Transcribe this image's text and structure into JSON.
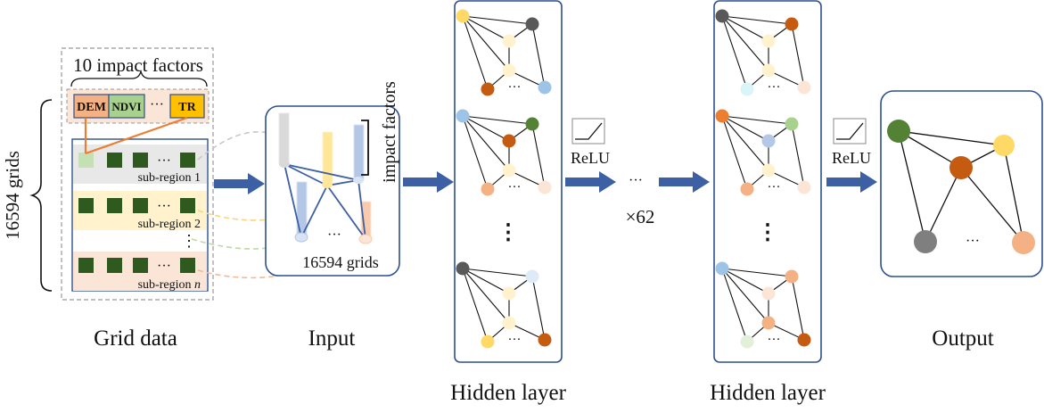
{
  "grid": {
    "section_label": "Grid data",
    "side_label": "16594 grids",
    "factors_label": "10 impact factors",
    "factor_chips": [
      "DEM",
      "NDVI",
      "TR"
    ],
    "chip_colors": [
      "#f4b183",
      "#a9d18e",
      "#ffc000"
    ],
    "ellipsis": "···",
    "regions": [
      {
        "label": "sub-region 1",
        "bg": "#e8e8e8"
      },
      {
        "label": "sub-region 2",
        "bg": "#fff2cc"
      },
      {
        "label": "sub-region ",
        "label_italic": "n",
        "bg": "#fbe5d6"
      }
    ],
    "vdots": "⋮"
  },
  "input": {
    "section_label": "Input",
    "right_label": "impact factors",
    "bottom_label": "16594 grids",
    "ellipsis": "···"
  },
  "hidden1": {
    "section_label": "Hidden layer",
    "ellipsis": "···",
    "vdots": "⋮"
  },
  "hidden2": {
    "section_label": "Hidden layer",
    "ellipsis": "···",
    "vdots": "⋮"
  },
  "relu": {
    "label1": "ReLU",
    "label2": "ReLU",
    "repeat_ellipsis": "···",
    "repeat_count": "×62"
  },
  "output": {
    "section_label": "Output",
    "ellipsis": "···"
  },
  "colors": {
    "box_border": "#2e4f8f",
    "arrow": "#3d5fa3",
    "cell": "#2e5a1f",
    "cell_light": "#c5e0b4",
    "orange_line": "#ed7d31"
  }
}
